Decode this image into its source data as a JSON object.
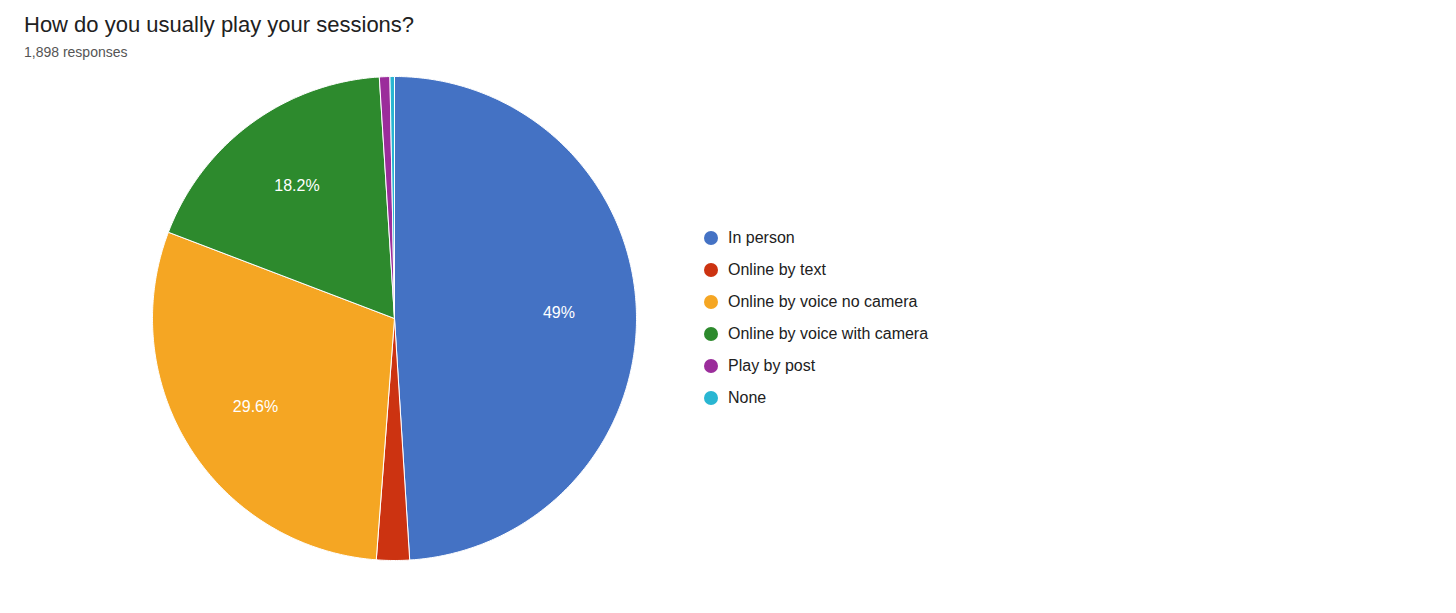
{
  "chart_data": {
    "type": "pie",
    "title": "How do you usually play your sessions?",
    "subtitle": "1,898 responses",
    "categories": [
      "In person",
      "Online by text",
      "Online by voice no camera",
      "Online by voice with camera",
      "Play by post",
      "None"
    ],
    "values": [
      49.0,
      2.2,
      29.6,
      18.2,
      0.7,
      0.3
    ],
    "value_labels": [
      "49%",
      null,
      "29.6%",
      "18.2%",
      null,
      null
    ],
    "colors": [
      "#4472c4",
      "#cc3311",
      "#f5a623",
      "#2d8a2d",
      "#9b2d9b",
      "#29b6d2"
    ],
    "data_labels": true,
    "legend": "right"
  }
}
